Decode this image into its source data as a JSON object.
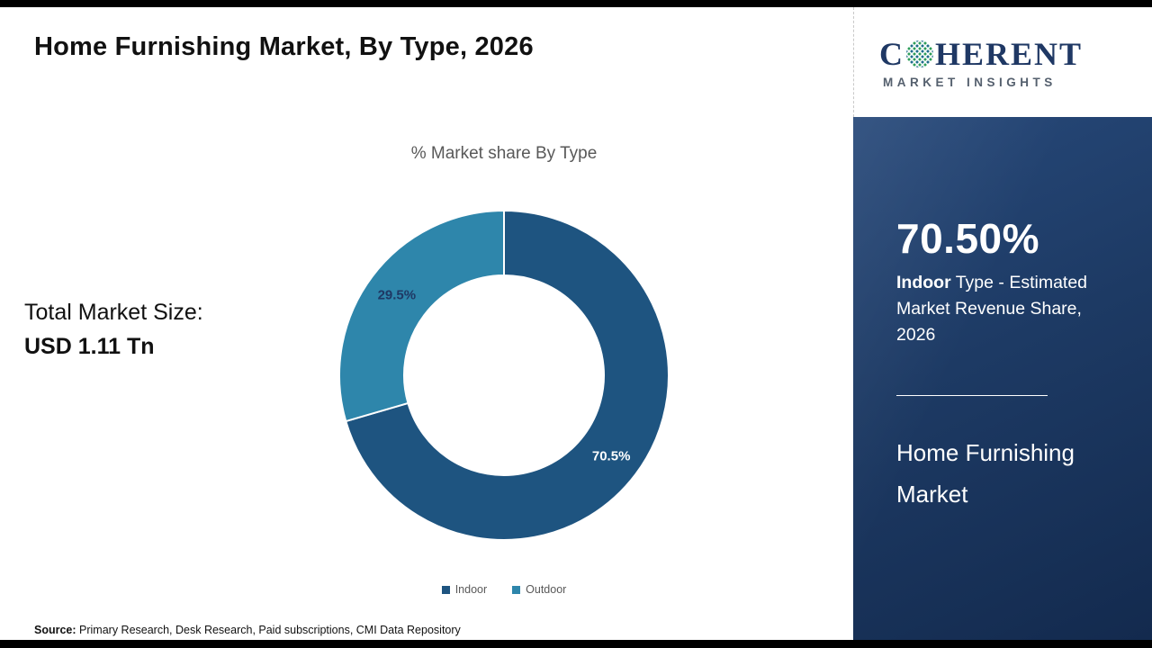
{
  "page": {
    "title": "Home Furnishing Market, By Type, 2026",
    "source_label": "Source:",
    "source_text": " Primary Research, Desk Research, Paid subscriptions, CMI Data Repository"
  },
  "logo": {
    "part1": "C",
    "part2": "HERENT",
    "line2": "MARKET INSIGHTS",
    "brand_color": "#1f3864"
  },
  "left_panel": {
    "market_size_label": "Total Market Size:",
    "market_size_value": "USD 1.11 Tn"
  },
  "chart_data": {
    "type": "pie",
    "subtype": "donut",
    "title": "% Market share By Type",
    "categories": [
      "Indoor",
      "Outdoor"
    ],
    "values": [
      70.5,
      29.5
    ],
    "slice_labels": [
      "70.5%",
      "29.5%"
    ],
    "colors": [
      "#1e5480",
      "#2e86ab"
    ],
    "label_colors": [
      "#ffffff",
      "#1f3864"
    ],
    "legend_position": "bottom",
    "start_angle_deg": -90,
    "direction": "clockwise"
  },
  "sidebar": {
    "stat_value": "70.50%",
    "stat_desc_bold": "Indoor",
    "stat_desc_rest": " Type - Estimated Market Revenue Share, 2026",
    "market_name_line1": "Home Furnishing",
    "market_name_line2": "Market"
  }
}
